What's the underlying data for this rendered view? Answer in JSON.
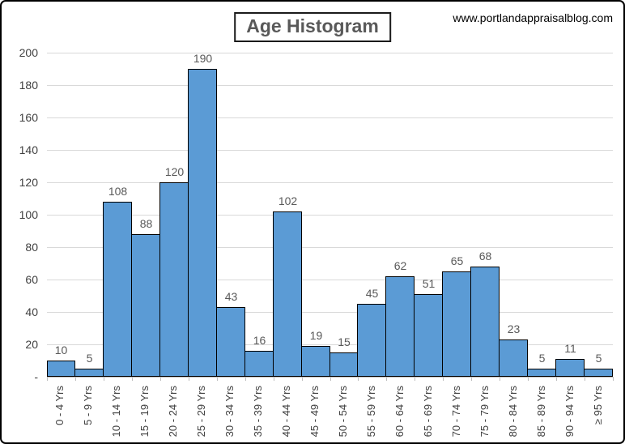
{
  "header": {
    "title": "Age Histogram",
    "website": "www.portlandappraisalblog.com"
  },
  "chart_data": {
    "type": "bar",
    "subtype": "histogram",
    "title": "Age Histogram",
    "categories": [
      "0 - 4 Yrs",
      "5 - 9 Yrs",
      "10 - 14 Yrs",
      "15 - 19 Yrs",
      "20 - 24 Yrs",
      "25 - 29 Yrs",
      "30 - 34 Yrs",
      "35 - 39 Yrs",
      "40 - 44 Yrs",
      "45 - 49 Yrs",
      "50 - 54 Yrs",
      "55 - 59 Yrs",
      "60 - 64 Yrs",
      "65 - 69 Yrs",
      "70 - 74 Yrs",
      "75 - 79 Yrs",
      "80 - 84 Yrs",
      "85 - 89 Yrs",
      "90 - 94 Yrs",
      "≥ 95 Yrs"
    ],
    "values": [
      10,
      5,
      108,
      88,
      120,
      190,
      43,
      16,
      102,
      19,
      15,
      45,
      62,
      51,
      65,
      68,
      23,
      5,
      11,
      5
    ],
    "data_labels": true,
    "xlabel": "",
    "ylabel": "",
    "ylim": [
      0,
      200
    ],
    "ytick_step": 20,
    "ytick_labels_top_to_bottom": [
      "200",
      "180",
      "160",
      "140",
      "120",
      "100",
      "80",
      "60",
      "40",
      "20",
      "-"
    ],
    "grid": true,
    "legend": false,
    "bar_gap": 0,
    "colors": {
      "bar_fill": "#5B9BD5",
      "bar_border": "#000000",
      "gridline": "#D9D9D9",
      "axis_line": "#BFBFBF",
      "tick_mark": "#BFBFBF",
      "data_label": "#595959",
      "axis_label": "#404040",
      "title_text": "#595959",
      "title_border": "#1a1a1a",
      "website_text": "#000000"
    }
  }
}
